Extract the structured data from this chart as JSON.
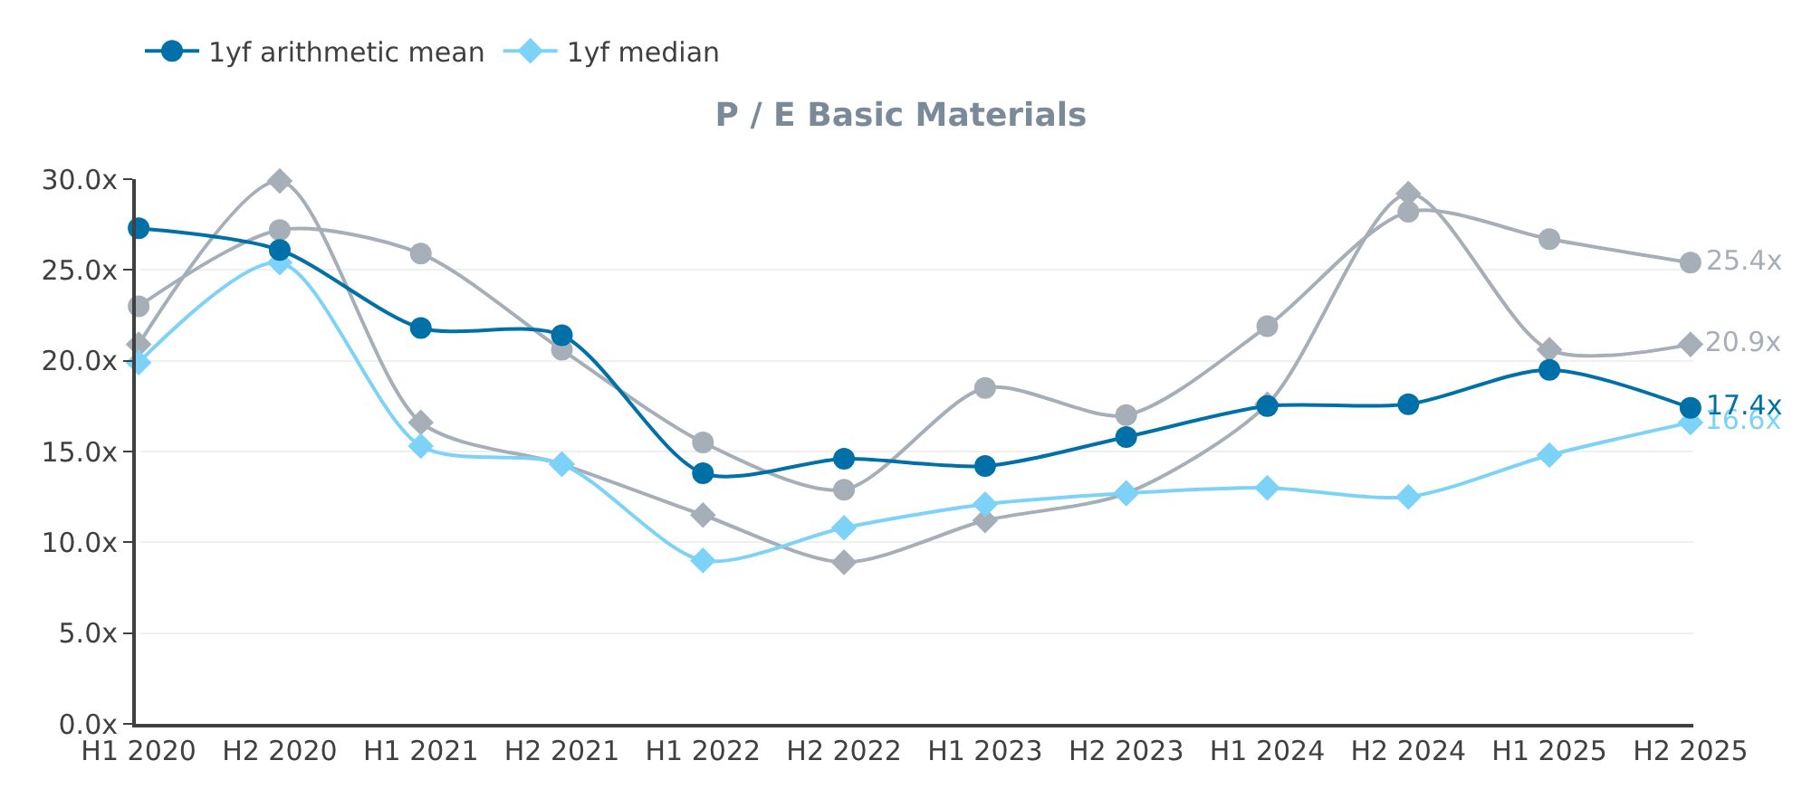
{
  "chart_data": {
    "type": "line",
    "title": "P / E Basic Materials",
    "categories": [
      "H1 2020",
      "H2 2020",
      "H1 2021",
      "H2 2021",
      "H1 2022",
      "H2 2022",
      "H1 2023",
      "H2 2023",
      "H1 2024",
      "H2 2024",
      "H1 2025",
      "H2 2025"
    ],
    "series": [
      {
        "name": "1yf arithmetic mean",
        "color": "#0070a8",
        "marker": "circle",
        "values": [
          27.3,
          26.1,
          21.8,
          21.4,
          13.8,
          14.6,
          14.2,
          15.8,
          17.5,
          17.6,
          19.5,
          17.4
        ],
        "value_labels": [
          null,
          null,
          null,
          null,
          null,
          null,
          null,
          null,
          null,
          null,
          null,
          "17.4x"
        ]
      },
      {
        "name": "1yf median",
        "color": "#7dd3f7",
        "marker": "diamond",
        "values": [
          19.9,
          25.4,
          15.3,
          14.3,
          9.0,
          10.8,
          12.1,
          12.7,
          13.0,
          12.5,
          14.8,
          16.6
        ],
        "value_labels": [
          null,
          null,
          null,
          null,
          null,
          null,
          null,
          null,
          null,
          null,
          null,
          "16.6x"
        ]
      },
      {
        "color": "#a6aeb8",
        "marker": "circle",
        "values": [
          23.0,
          27.2,
          25.9,
          20.6,
          15.5,
          12.9,
          18.5,
          17.0,
          21.9,
          28.2,
          26.7,
          25.4
        ],
        "value_labels": [
          null,
          null,
          null,
          null,
          null,
          null,
          null,
          null,
          null,
          null,
          null,
          "25.4x"
        ]
      },
      {
        "color": "#a6aeb8",
        "marker": "diamond",
        "values": [
          20.9,
          29.9,
          16.6,
          14.3,
          11.5,
          8.9,
          11.2,
          12.7,
          17.6,
          29.2,
          20.6,
          20.9
        ],
        "value_labels": [
          null,
          null,
          null,
          null,
          null,
          null,
          null,
          null,
          null,
          null,
          null,
          "20.9x"
        ]
      }
    ],
    "ylim": [
      0,
      30
    ],
    "yticks": [
      {
        "value": 0,
        "label": "0.0x"
      },
      {
        "value": 5,
        "label": "5.0x"
      },
      {
        "value": 10,
        "label": "10.0x"
      },
      {
        "value": 15,
        "label": "15.0x"
      },
      {
        "value": 20,
        "label": "20.0x"
      },
      {
        "value": 25,
        "label": "25.0x"
      },
      {
        "value": 30,
        "label": "30.0x"
      }
    ],
    "grid": "y",
    "legend": "top left",
    "line_style": "solid"
  }
}
